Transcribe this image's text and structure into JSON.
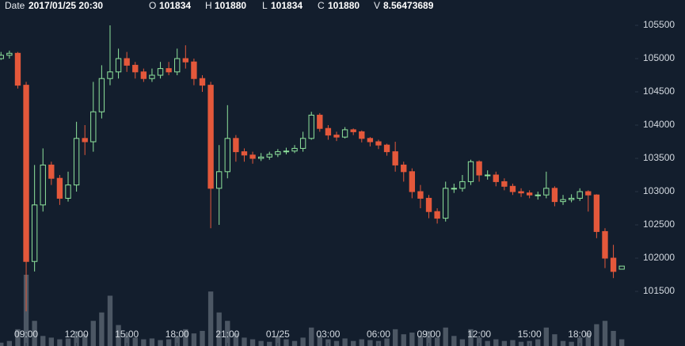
{
  "header": {
    "date_label": "Date",
    "date": "2017/01/25 20:30",
    "open_label": "O",
    "open": 101834,
    "high_label": "H",
    "high": 101880,
    "low_label": "L",
    "low": 101834,
    "close_label": "C",
    "close": 101880,
    "volume_label": "V",
    "volume": 8.56473689
  },
  "chart_data": {
    "type": "candlestick",
    "x": [
      7.5,
      8,
      8.5,
      9,
      9.5,
      10,
      10.5,
      11,
      11.5,
      12,
      12.5,
      13,
      13.5,
      14,
      14.5,
      15,
      15.5,
      16,
      16.5,
      17,
      17.5,
      18,
      18.5,
      19,
      19.5,
      20,
      20.5,
      21,
      21.5,
      22,
      22.5,
      23,
      23.5,
      24,
      24.5,
      25,
      25.5,
      26,
      26.5,
      27,
      27.5,
      28,
      28.5,
      29,
      29.5,
      30,
      30.5,
      31,
      31.5,
      32,
      32.5,
      33,
      33.5,
      34,
      34.5,
      35,
      35.5,
      36,
      36.5,
      37,
      37.5,
      38,
      38.5,
      39,
      39.5,
      40,
      40.5,
      41,
      41.5,
      42,
      42.5,
      43,
      43.5,
      44,
      44.5
    ],
    "open": [
      105000,
      105050,
      105080,
      104600,
      101950,
      102800,
      103400,
      103200,
      102900,
      103100,
      103800,
      103750,
      104200,
      104700,
      104800,
      105000,
      104900,
      104800,
      104700,
      104750,
      104850,
      104800,
      105000,
      104950,
      104700,
      104600,
      103050,
      103300,
      103800,
      103600,
      103550,
      103500,
      103520,
      103560,
      103600,
      103610,
      103650,
      103800,
      104150,
      103950,
      103850,
      103820,
      103930,
      103900,
      103800,
      103750,
      103700,
      103600,
      103400,
      103300,
      103000,
      102900,
      102700,
      102600,
      103050,
      103050,
      103150,
      103450,
      103250,
      103250,
      103150,
      103080,
      103000,
      102980,
      102950,
      102950,
      103050,
      102850,
      102880,
      102900,
      103000,
      102950,
      102400,
      102000,
      101834
    ],
    "high": [
      105100,
      105120,
      105100,
      104650,
      103400,
      103650,
      103450,
      103250,
      103300,
      104050,
      104000,
      104650,
      104900,
      105500,
      105150,
      105100,
      104950,
      104850,
      104850,
      104950,
      104950,
      105150,
      105200,
      105000,
      104750,
      104650,
      103700,
      104300,
      103850,
      103650,
      103600,
      103580,
      103600,
      103640,
      103660,
      103700,
      103900,
      104200,
      104180,
      104000,
      103900,
      103970,
      103950,
      103920,
      103820,
      103780,
      103720,
      103750,
      103450,
      103350,
      103100,
      102950,
      102750,
      103150,
      103120,
      103250,
      103480,
      103470,
      103320,
      103300,
      103200,
      103120,
      103050,
      103020,
      103000,
      103300,
      103080,
      102950,
      102960,
      103050,
      103020,
      102960,
      102450,
      102200,
      101880
    ],
    "low": [
      104980,
      105000,
      104550,
      101200,
      101800,
      102700,
      103100,
      102800,
      102850,
      103000,
      103550,
      103600,
      104100,
      104600,
      104700,
      104800,
      104700,
      104650,
      104650,
      104700,
      104750,
      104750,
      104850,
      104600,
      104500,
      102450,
      102500,
      103200,
      103450,
      103450,
      103420,
      103460,
      103480,
      103520,
      103560,
      103580,
      103600,
      103780,
      103900,
      103780,
      103760,
      103800,
      103850,
      103740,
      103680,
      103640,
      103540,
      103300,
      103150,
      102900,
      102750,
      102600,
      102520,
      102550,
      102980,
      103000,
      103100,
      103150,
      103180,
      103080,
      103020,
      102950,
      102920,
      102900,
      102880,
      102900,
      102780,
      102800,
      102840,
      102860,
      102700,
      102300,
      101850,
      101700,
      101834
    ],
    "close": [
      105050,
      105080,
      104600,
      101950,
      102800,
      103400,
      103200,
      102900,
      103100,
      103800,
      103750,
      104200,
      104700,
      104800,
      105000,
      104900,
      104800,
      104700,
      104750,
      104850,
      104800,
      105000,
      104950,
      104700,
      104600,
      103050,
      103300,
      103800,
      103600,
      103550,
      103500,
      103520,
      103560,
      103600,
      103610,
      103650,
      103800,
      104150,
      103950,
      103850,
      103820,
      103930,
      103900,
      103800,
      103750,
      103700,
      103600,
      103400,
      103300,
      103000,
      102900,
      102700,
      102600,
      103050,
      103050,
      103150,
      103450,
      103250,
      103250,
      103150,
      103080,
      103000,
      102980,
      102950,
      102950,
      103050,
      102850,
      102880,
      102900,
      103000,
      102950,
      102400,
      102000,
      101800,
      101880
    ],
    "volume": [
      4,
      6,
      20,
      85,
      30,
      12,
      10,
      8,
      9,
      18,
      14,
      30,
      40,
      60,
      25,
      15,
      10,
      8,
      9,
      7,
      8,
      12,
      20,
      15,
      18,
      65,
      40,
      30,
      15,
      10,
      8,
      6,
      5,
      12,
      8,
      6,
      10,
      22,
      12,
      8,
      6,
      9,
      6,
      8,
      7,
      6,
      9,
      20,
      14,
      16,
      12,
      18,
      10,
      22,
      12,
      8,
      20,
      10,
      6,
      8,
      6,
      7,
      5,
      6,
      8,
      22,
      14,
      6,
      5,
      10,
      16,
      26,
      30,
      18,
      8
    ],
    "up_color": "#8ee39c",
    "down_color": "#e4583b",
    "volume_color": "#5b6572",
    "xlim": [
      7.44,
      45.2
    ],
    "ylim": [
      100679,
      105881
    ],
    "xticks": [
      {
        "value": 9,
        "label": "09:00"
      },
      {
        "value": 12,
        "label": "12:00"
      },
      {
        "value": 15,
        "label": "15:00"
      },
      {
        "value": 18,
        "label": "18:00"
      },
      {
        "value": 21,
        "label": "21:00"
      },
      {
        "value": 24,
        "label": "01/25"
      },
      {
        "value": 27,
        "label": "03:00"
      },
      {
        "value": 30,
        "label": "06:00"
      },
      {
        "value": 33,
        "label": "09:00"
      },
      {
        "value": 36,
        "label": "12:00"
      },
      {
        "value": 39,
        "label": "15:00"
      },
      {
        "value": 42,
        "label": "18:00"
      }
    ],
    "yticks": [
      101500,
      102000,
      102500,
      103000,
      103500,
      104000,
      104500,
      105000,
      105500
    ],
    "grid": false
  }
}
